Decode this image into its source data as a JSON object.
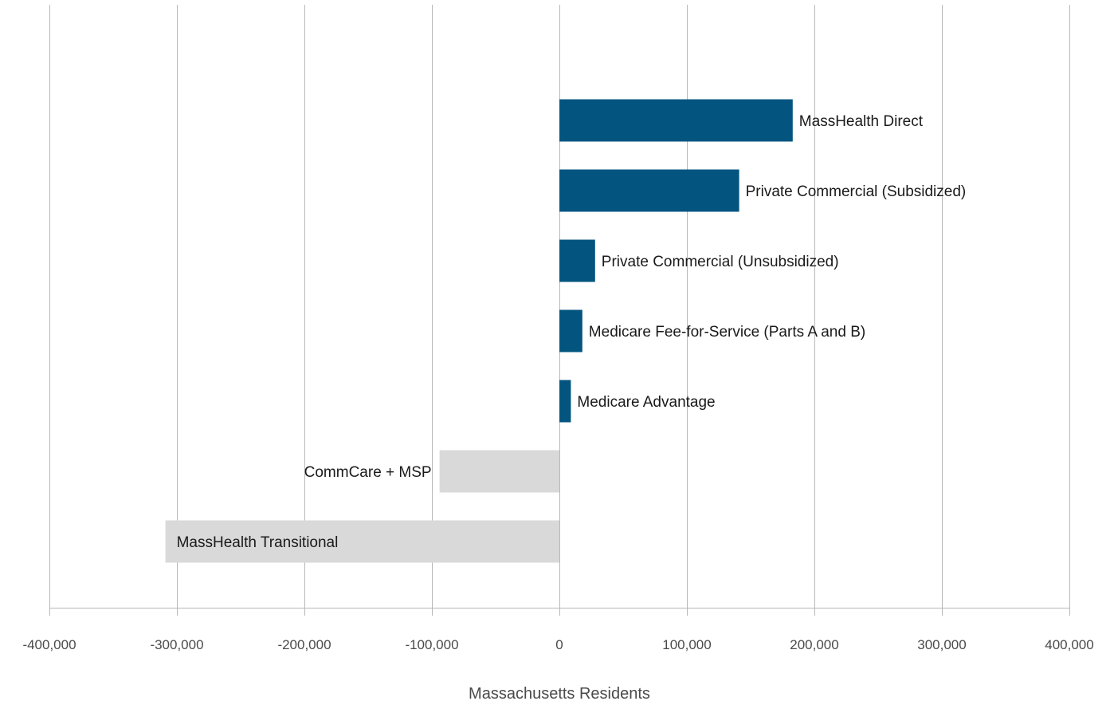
{
  "chart_data": {
    "type": "bar",
    "orientation": "horizontal",
    "title": "",
    "xlabel": "Massachusetts Residents",
    "ylabel": "",
    "xlim": [
      -400000,
      400000
    ],
    "xticks": [
      -400000,
      -300000,
      -200000,
      -100000,
      0,
      100000,
      200000,
      300000,
      400000
    ],
    "xtick_labels": [
      "-400,000",
      "-300,000",
      "-200,000",
      "-100,000",
      "0",
      "100,000",
      "200,000",
      "300,000",
      "400,000"
    ],
    "grid": true,
    "legend": "none",
    "categories": [
      "MassHealth Direct",
      "Private Commercial (Subsidized)",
      "Private Commercial (Unsubsidized)",
      "Medicare Fee-for-Service (Parts A and B)",
      "Medicare Advantage",
      "CommCare + MSP",
      "MassHealth Transitional"
    ],
    "values": [
      183000,
      141000,
      28000,
      18000,
      9000,
      -94000,
      -309000
    ],
    "colors": {
      "positive": "#03557f",
      "negative": "#d9d9d9"
    }
  }
}
